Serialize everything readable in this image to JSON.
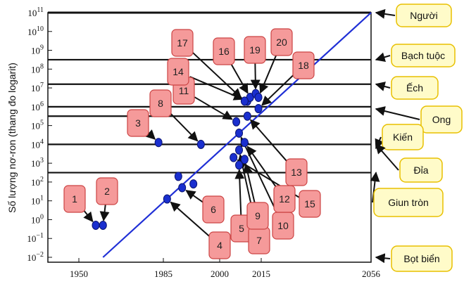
{
  "chart_data": {
    "type": "scatter",
    "ylabel": "Số lượng nơ-ron (thang đo logarit)",
    "xlabel": "",
    "x_ticks": [
      1950,
      1985,
      2000,
      2015,
      2056
    ],
    "y_log_range": [
      -2,
      11
    ],
    "y_scale": "log",
    "trend_line": {
      "x": [
        1960,
        2056
      ],
      "y_log": [
        -2,
        11
      ],
      "color": "#1f2fd6"
    },
    "organism_levels": [
      {
        "name": "Người",
        "y_log": 11
      },
      {
        "name": "Bạch tuộc",
        "y_log": 8.5
      },
      {
        "name": "Ếch",
        "y_log": 7.2
      },
      {
        "name": "Ong",
        "y_log": 6.0
      },
      {
        "name": "Kiến",
        "y_log": 5.5
      },
      {
        "name": "Đỉa",
        "y_log": 4.0
      },
      {
        "name": "Giun tròn",
        "y_log": 2.5
      },
      {
        "name": "Bọt biển",
        "y_log": -2
      }
    ],
    "points": [
      {
        "label": "1",
        "x": 1957,
        "y_log": -0.3
      },
      {
        "label": "2",
        "x": 1960,
        "y_log": -0.3
      },
      {
        "label": "3",
        "x": 1983,
        "y_log": 4.1
      },
      {
        "label": "4",
        "x": 1986,
        "y_log": 1.1
      },
      {
        "label": "5",
        "x": 2007,
        "y_log": 2.9
      },
      {
        "label": "6",
        "x": 1990,
        "y_log": 1.7
      },
      {
        "label": "7",
        "x": 2007,
        "y_log": 3.7
      },
      {
        "label": "8",
        "x": 1995,
        "y_log": 4.0
      },
      {
        "label": "9",
        "x": 2009,
        "y_log": 3.2
      },
      {
        "label": "10",
        "x": 2007,
        "y_log": 4.6
      },
      {
        "label": "11",
        "x": 2006,
        "y_log": 5.2
      },
      {
        "label": "12",
        "x": 2009,
        "y_log": 4.1
      },
      {
        "label": "13",
        "x": 2010,
        "y_log": 5.5
      },
      {
        "label": "14",
        "x": 2010,
        "y_log": 6.3
      },
      {
        "label": "15",
        "x": 2005,
        "y_log": 3.3
      },
      {
        "label": "16",
        "x": 2011,
        "y_log": 6.5
      },
      {
        "label": "17",
        "x": 2009,
        "y_log": 6.3
      },
      {
        "label": "18",
        "x": 2014,
        "y_log": 5.9
      },
      {
        "label": "19",
        "x": 2013,
        "y_log": 6.7
      },
      {
        "label": "20",
        "x": 2014,
        "y_log": 6.5
      },
      {
        "label": "",
        "x": 1989,
        "y_log": 2.3
      },
      {
        "label": "",
        "x": 1993,
        "y_log": 1.9
      }
    ]
  }
}
